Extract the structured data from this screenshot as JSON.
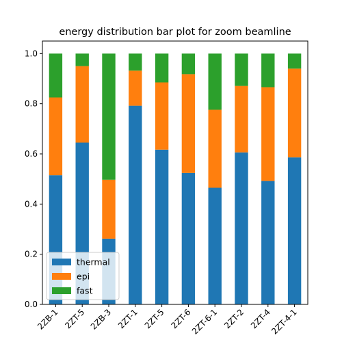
{
  "chart_data": {
    "type": "bar",
    "stacked": true,
    "title": "energy distribution bar plot for zoom beamline",
    "xlabel": "",
    "ylabel": "",
    "ylim": [
      0,
      1.05
    ],
    "yticks": [
      "0.0",
      "0.2",
      "0.4",
      "0.6",
      "0.8",
      "1.0"
    ],
    "categories": [
      "2ZB-1",
      "2ZT-5",
      "2ZB-3",
      "2ZT-1",
      "2ZT-5",
      "2ZT-6",
      "2ZT-6-1",
      "2ZT-2",
      "2ZT-4",
      "2ZT-4-1"
    ],
    "series": [
      {
        "name": "thermal",
        "color": "#1f77b4",
        "values": [
          0.515,
          0.645,
          0.262,
          0.792,
          0.617,
          0.524,
          0.465,
          0.606,
          0.492,
          0.586
        ]
      },
      {
        "name": "epi",
        "color": "#ff7f0e",
        "values": [
          0.31,
          0.305,
          0.235,
          0.14,
          0.268,
          0.394,
          0.311,
          0.265,
          0.374,
          0.354
        ]
      },
      {
        "name": "fast",
        "color": "#2ca02c",
        "values": [
          0.175,
          0.05,
          0.503,
          0.068,
          0.115,
          0.082,
          0.224,
          0.129,
          0.134,
          0.06
        ]
      }
    ],
    "grid": false,
    "legend_position": "lower-left"
  }
}
